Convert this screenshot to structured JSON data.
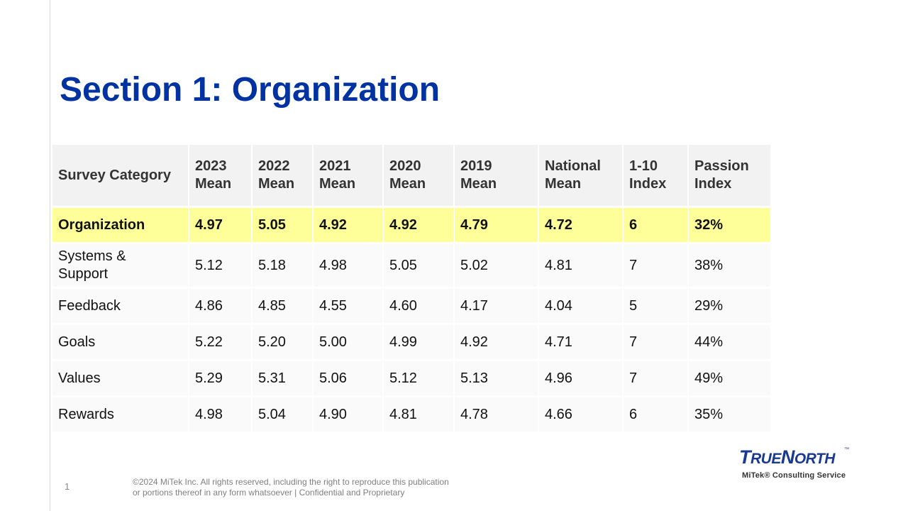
{
  "colors": {
    "title": "#0033a1",
    "highlight": "#ffff99",
    "brand": "#1a3a8f"
  },
  "slide": {
    "title": "Section 1: Organization",
    "page_number": "1"
  },
  "table": {
    "headers": [
      [
        "Survey Category"
      ],
      [
        "2023",
        "Mean"
      ],
      [
        "2022",
        "Mean"
      ],
      [
        "2021",
        "Mean"
      ],
      [
        "2020",
        "Mean"
      ],
      [
        "2019",
        "Mean"
      ],
      [
        "National",
        "Mean"
      ],
      [
        "1-10",
        "Index"
      ],
      [
        "Passion",
        "Index"
      ]
    ],
    "rows": [
      {
        "category": [
          "Organization"
        ],
        "values": [
          "4.97",
          "5.05",
          "4.92",
          "4.92",
          "4.79",
          "4.72",
          "6",
          "32%"
        ],
        "highlight": true
      },
      {
        "category": [
          "Systems &",
          "Support"
        ],
        "values": [
          "5.12",
          "5.18",
          "4.98",
          "5.05",
          "5.02",
          "4.81",
          "7",
          "38%"
        ]
      },
      {
        "category": [
          "Feedback"
        ],
        "values": [
          "4.86",
          "4.85",
          "4.55",
          "4.60",
          "4.17",
          "4.04",
          "5",
          "29%"
        ]
      },
      {
        "category": [
          "Goals"
        ],
        "values": [
          "5.22",
          "5.20",
          "5.00",
          "4.99",
          "4.92",
          "4.71",
          "7",
          "44%"
        ]
      },
      {
        "category": [
          "Values"
        ],
        "values": [
          "5.29",
          "5.31",
          "5.06",
          "5.12",
          "5.13",
          "4.96",
          "7",
          "49%"
        ]
      },
      {
        "category": [
          "Rewards"
        ],
        "values": [
          "4.98",
          "5.04",
          "4.90",
          "4.81",
          "4.78",
          "4.66",
          "6",
          "35%"
        ]
      }
    ]
  },
  "footer": {
    "line1": "©2024 MiTek Inc. All rights reserved, including the right to reproduce this publication",
    "line2": "or portions thereof in any form whatsoever | Confidential and Proprietary"
  },
  "logo": {
    "part1_big": "T",
    "part1_small": "RUE",
    "part2_big": "N",
    "part2_small": "ORTH",
    "trademark": "™",
    "subtitle": "MiTek® Consulting Service"
  }
}
